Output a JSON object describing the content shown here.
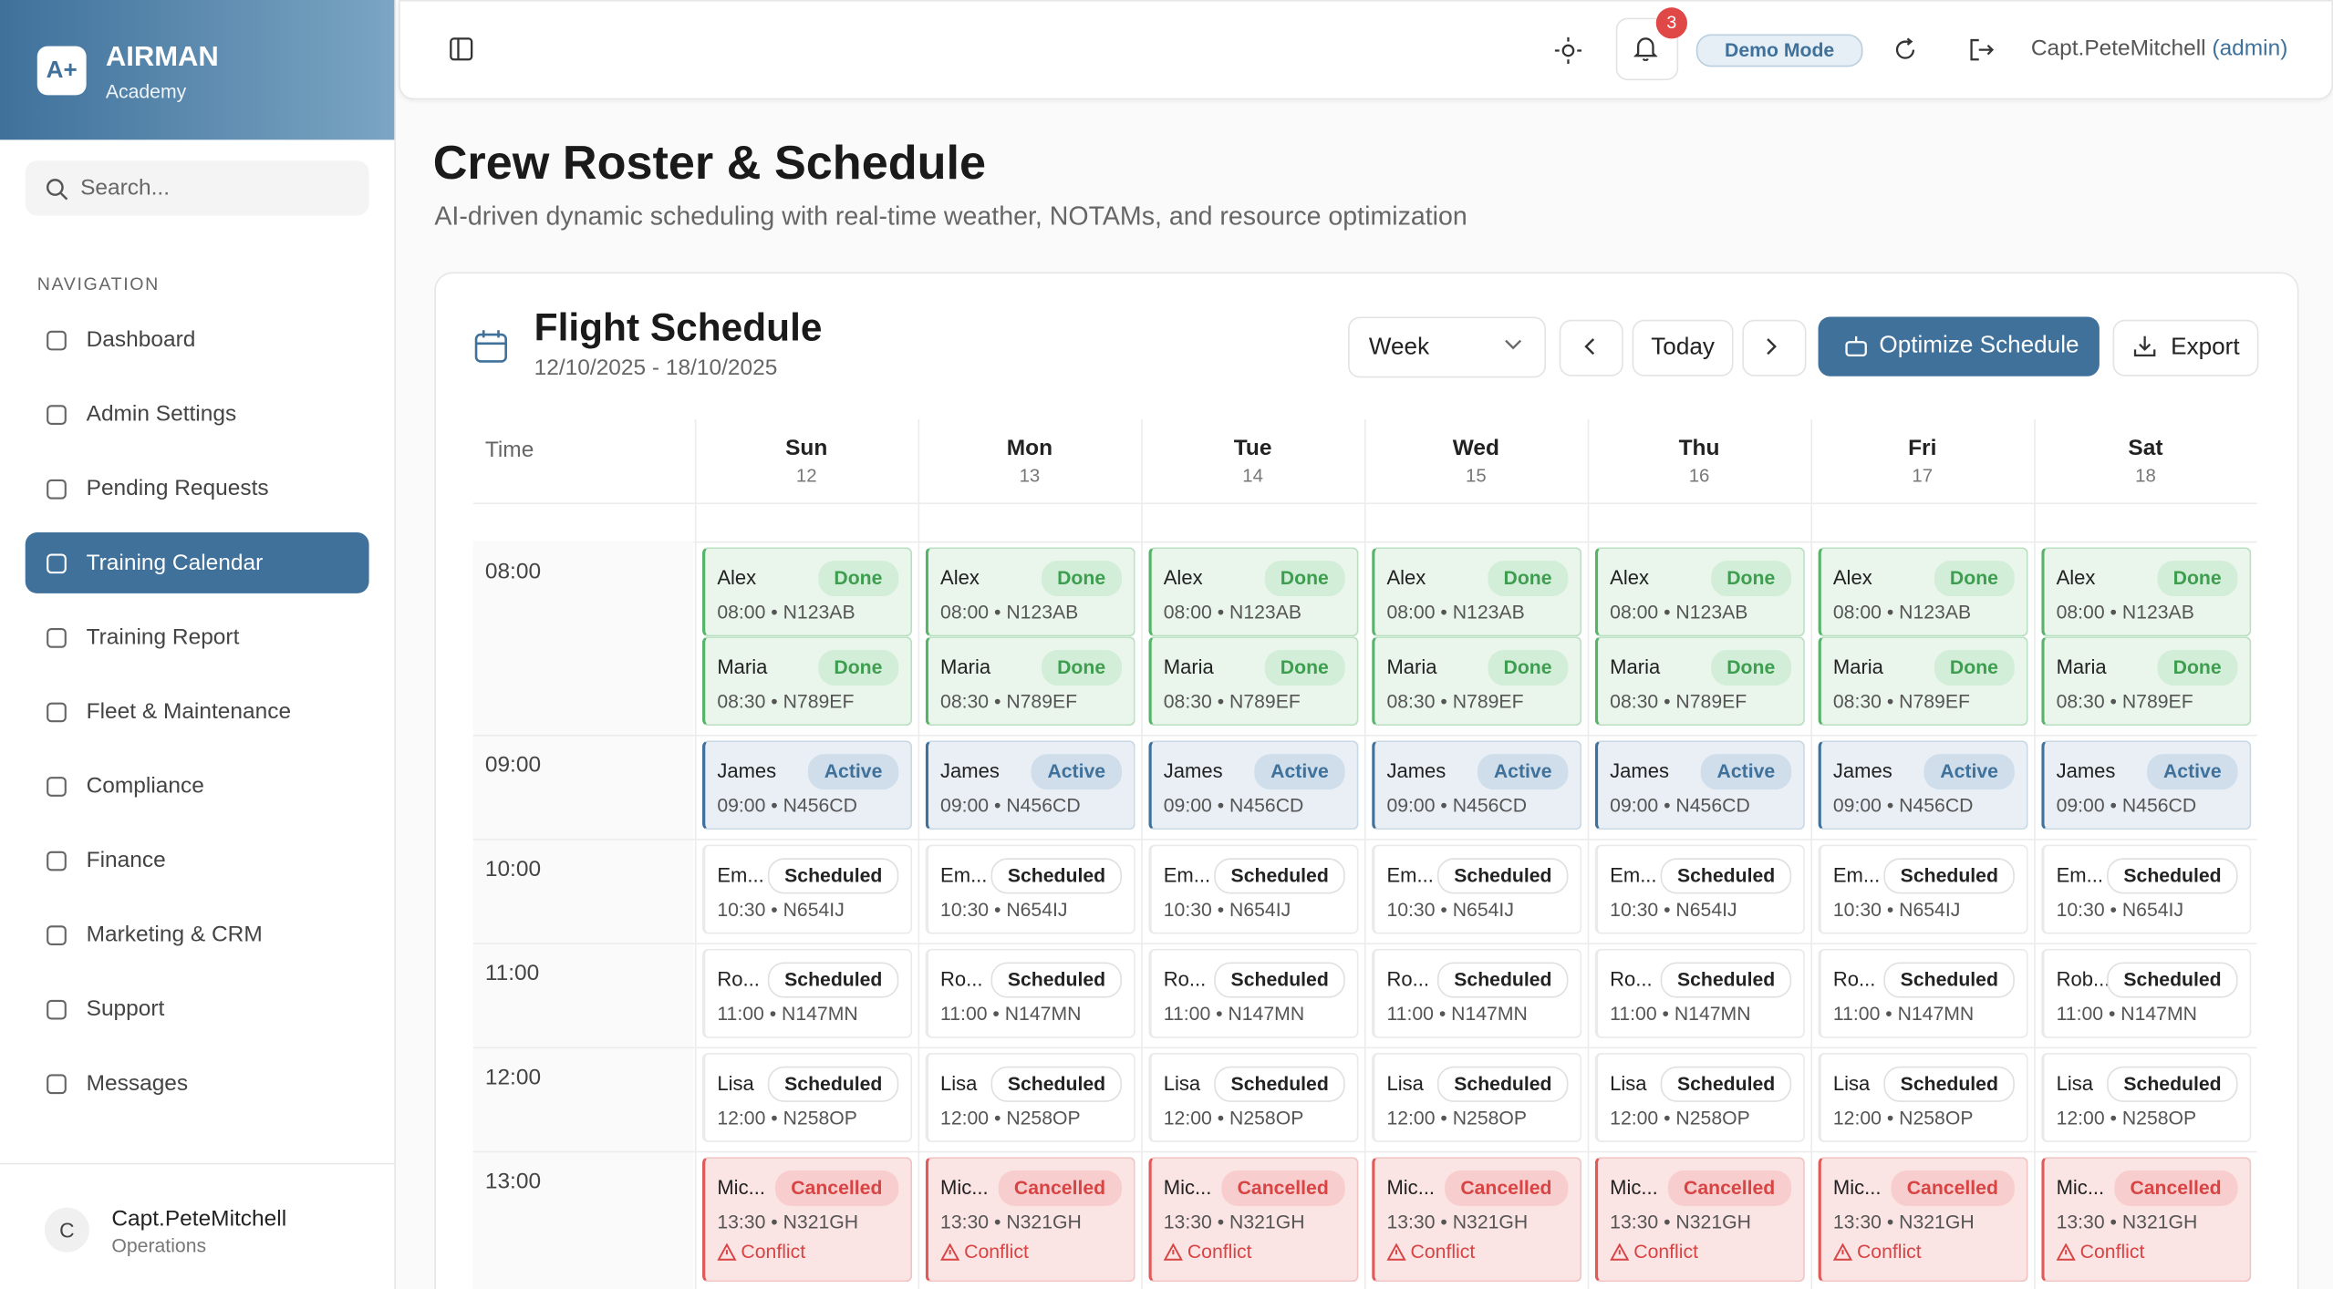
{
  "sidebar": {
    "brand": {
      "logo": "A+",
      "name": "AIRMAN",
      "sub": "Academy"
    },
    "search": "Search...",
    "nav_heading": "NAVIGATION",
    "nav": [
      {
        "label": "Dashboard"
      },
      {
        "label": "Admin Settings"
      },
      {
        "label": "Pending Requests"
      },
      {
        "label": "Training Calendar",
        "active": true
      },
      {
        "label": "Training Report"
      },
      {
        "label": "Fleet & Maintenance"
      },
      {
        "label": "Compliance"
      },
      {
        "label": "Finance"
      },
      {
        "label": "Marketing & CRM"
      },
      {
        "label": "Support"
      },
      {
        "label": "Messages"
      }
    ],
    "user": {
      "initial": "C",
      "name": "Capt.PeteMitchell",
      "role": "Operations"
    }
  },
  "header": {
    "notifications": "3",
    "demo": "Demo Mode",
    "user": "Capt.PeteMitchell",
    "role": "(admin)"
  },
  "page": {
    "title": "Crew Roster & Schedule",
    "subtitle": "AI-driven dynamic scheduling with real-time weather, NOTAMs, and resource optimization"
  },
  "schedule": {
    "title": "Flight Schedule",
    "range": "12/10/2025 - 18/10/2025",
    "view": "Week",
    "today": "Today",
    "optimize": "Optimize Schedule",
    "export": "Export",
    "time_heading": "Time",
    "days": [
      {
        "name": "Sun",
        "date": "12"
      },
      {
        "name": "Mon",
        "date": "13"
      },
      {
        "name": "Tue",
        "date": "14"
      },
      {
        "name": "Wed",
        "date": "15"
      },
      {
        "name": "Thu",
        "date": "16"
      },
      {
        "name": "Fri",
        "date": "17"
      },
      {
        "name": "Sat",
        "date": "18"
      }
    ],
    "slots": [
      {
        "time": "08:00",
        "events": [
          {
            "status": "Done",
            "tone": "green",
            "meta": "08:00 • N123AB",
            "cells": [
              "Alex",
              "Alex",
              "Alex",
              "Alex",
              "Alex",
              "Alex",
              "Alex"
            ]
          },
          {
            "status": "Done",
            "tone": "green",
            "meta": "08:30 • N789EF",
            "cells": [
              "Maria",
              "Maria",
              "Maria",
              "Maria",
              "Maria",
              "Maria",
              "Maria"
            ]
          }
        ]
      },
      {
        "time": "09:00",
        "events": [
          {
            "status": "Active",
            "tone": "blue",
            "meta": "09:00 • N456CD",
            "cells": [
              "James",
              "James",
              "James",
              "James",
              "James",
              "James",
              "James"
            ]
          }
        ]
      },
      {
        "time": "10:00",
        "events": [
          {
            "status": "Scheduled",
            "tone": "plain",
            "meta": "10:30 • N654IJ",
            "cells": [
              "Em...",
              "Em...",
              "Em...",
              "Em...",
              "Em...",
              "Em...",
              "Em..."
            ]
          }
        ]
      },
      {
        "time": "11:00",
        "events": [
          {
            "status": "Scheduled",
            "tone": "plain",
            "meta": "11:00 • N147MN",
            "cells": [
              "Ro...",
              "Ro...",
              "Ro...",
              "Ro...",
              "Ro...",
              "Ro...",
              "Rob..."
            ]
          }
        ]
      },
      {
        "time": "12:00",
        "events": [
          {
            "status": "Scheduled",
            "tone": "plain",
            "meta": "12:00 • N258OP",
            "cells": [
              "Lisa",
              "Lisa",
              "Lisa",
              "Lisa",
              "Lisa",
              "Lisa",
              "Lisa"
            ]
          }
        ]
      },
      {
        "time": "13:00",
        "events": [
          {
            "status": "Cancelled",
            "tone": "red",
            "meta": "13:30 • N321GH",
            "conflict": "Conflict",
            "cells": [
              "Mic...",
              "Mic...",
              "Mic...",
              "Mic...",
              "Mic...",
              "Mic...",
              "Mic..."
            ]
          }
        ]
      }
    ]
  }
}
